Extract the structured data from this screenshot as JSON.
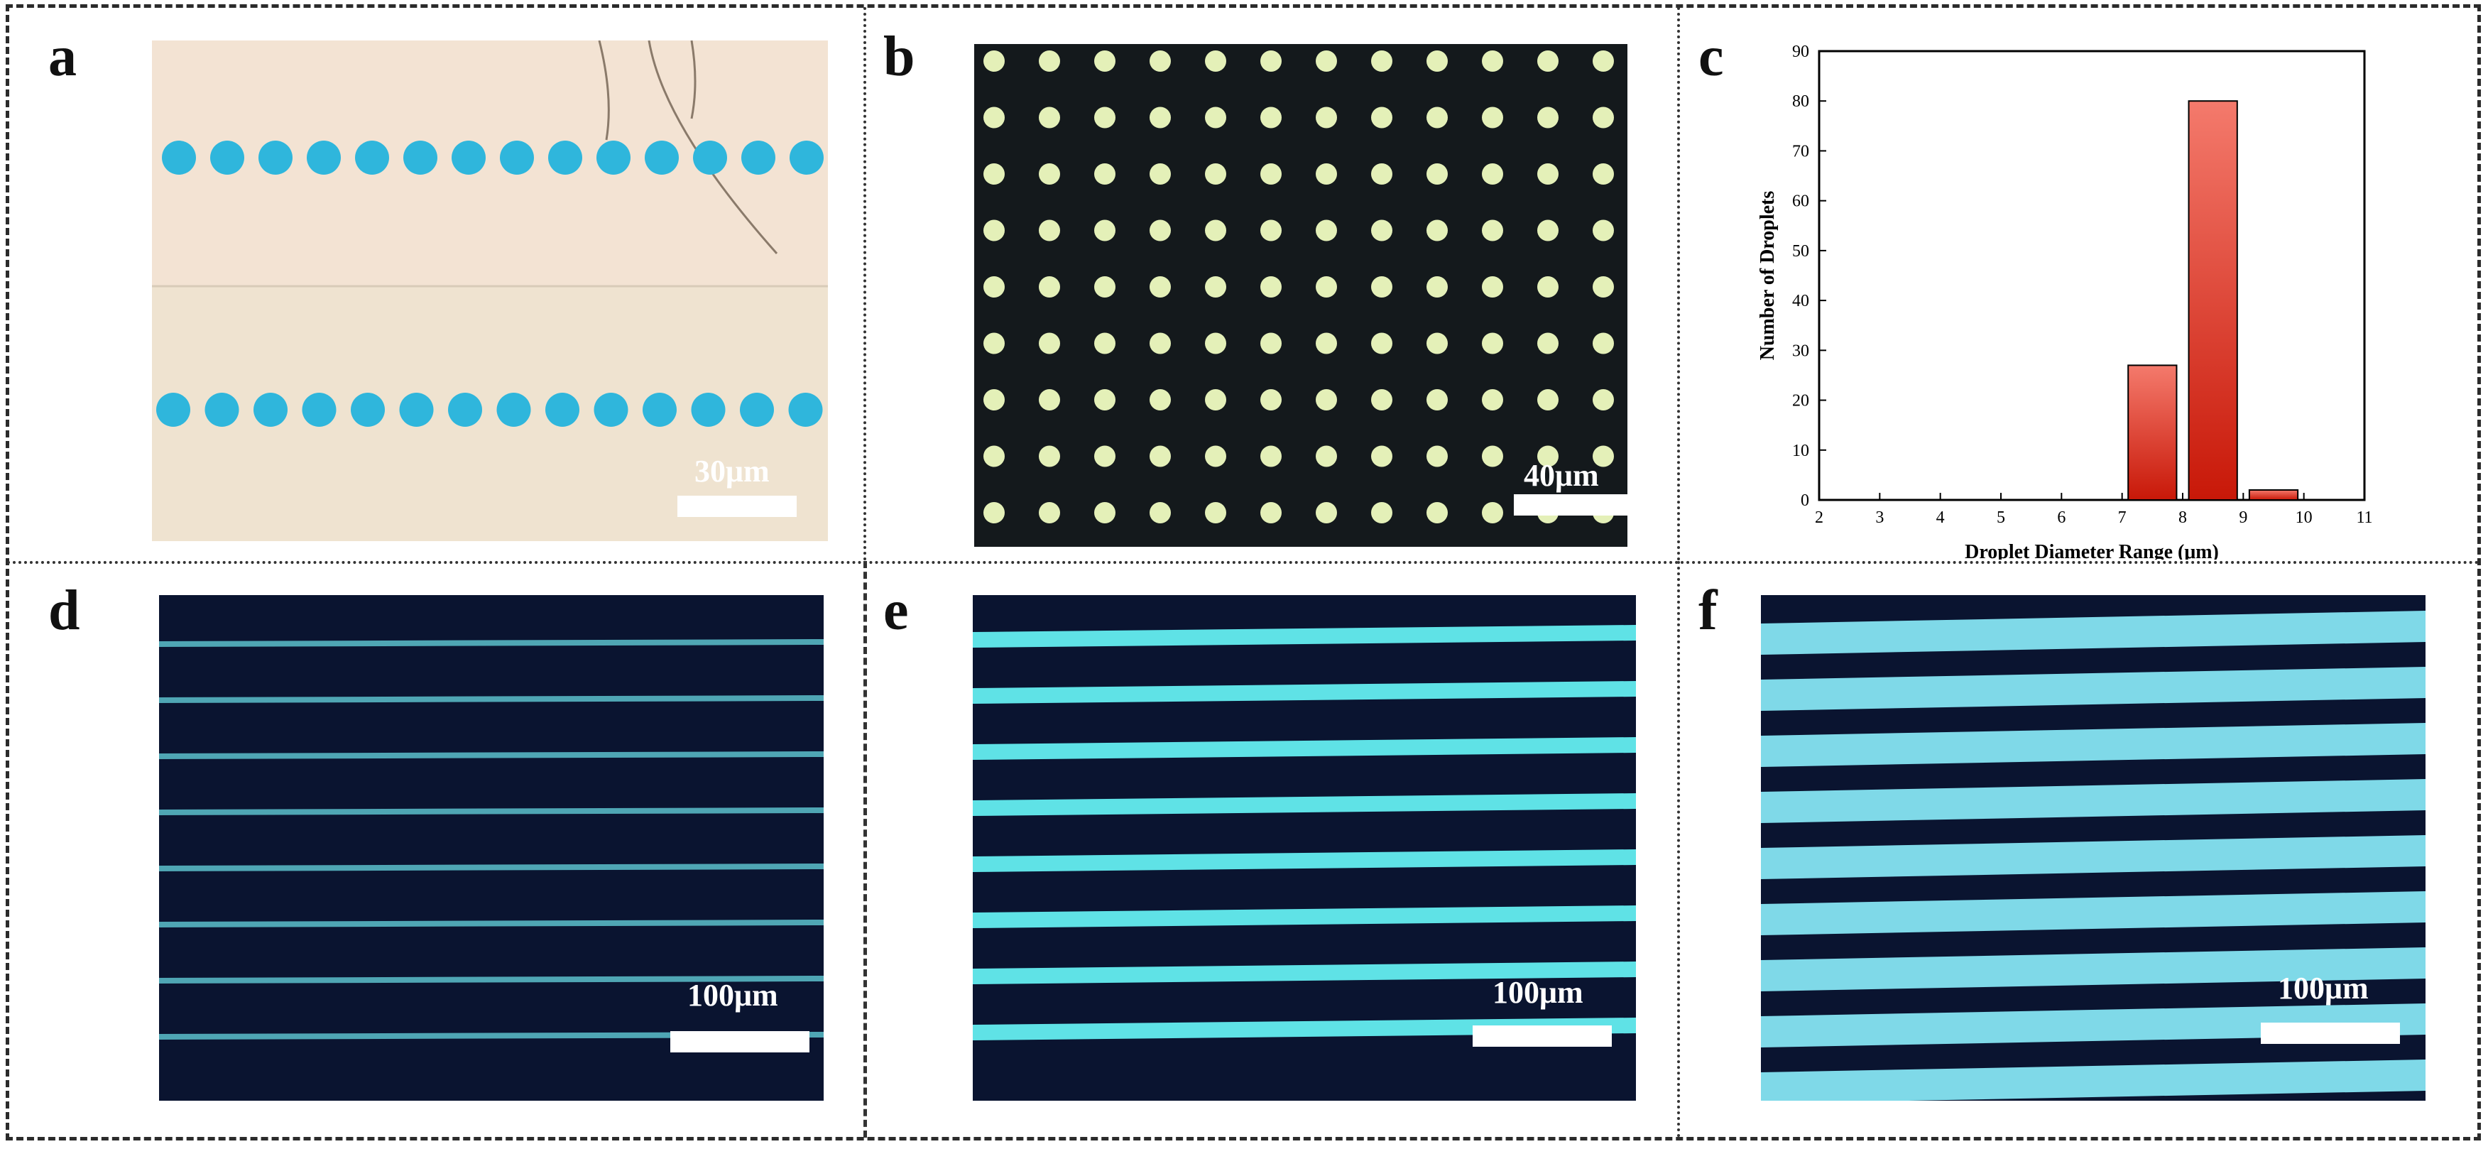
{
  "panels": {
    "a": {
      "letter": "a",
      "scale": "30μm"
    },
    "b": {
      "letter": "b",
      "scale": "40μm"
    },
    "c": {
      "letter": "c"
    },
    "d": {
      "letter": "d",
      "scale": "100μm"
    },
    "e": {
      "letter": "e",
      "scale": "100μm"
    },
    "f": {
      "letter": "f",
      "scale": "100μm"
    }
  },
  "colors": {
    "droplet": "#2fb6dc",
    "substrate_a": "#f2e4d6",
    "substrate_dark": "#0b1430",
    "dot": "#e4f0b8",
    "line": "#5fe2e6",
    "bar": "#e23a22"
  },
  "chart_data": {
    "type": "bar",
    "xlabel": "Droplet Diameter Range (μm)",
    "ylabel": "Number of Droplets",
    "xlim": [
      2,
      11
    ],
    "ylim": [
      0,
      90
    ],
    "xticks": [
      2,
      3,
      4,
      5,
      6,
      7,
      8,
      9,
      10,
      11
    ],
    "yticks": [
      0,
      10,
      20,
      30,
      40,
      50,
      60,
      70,
      80,
      90
    ],
    "bins": [
      {
        "center": 7.5,
        "value": 27
      },
      {
        "center": 8.5,
        "value": 80
      },
      {
        "center": 9.5,
        "value": 2
      }
    ],
    "grid": false
  }
}
